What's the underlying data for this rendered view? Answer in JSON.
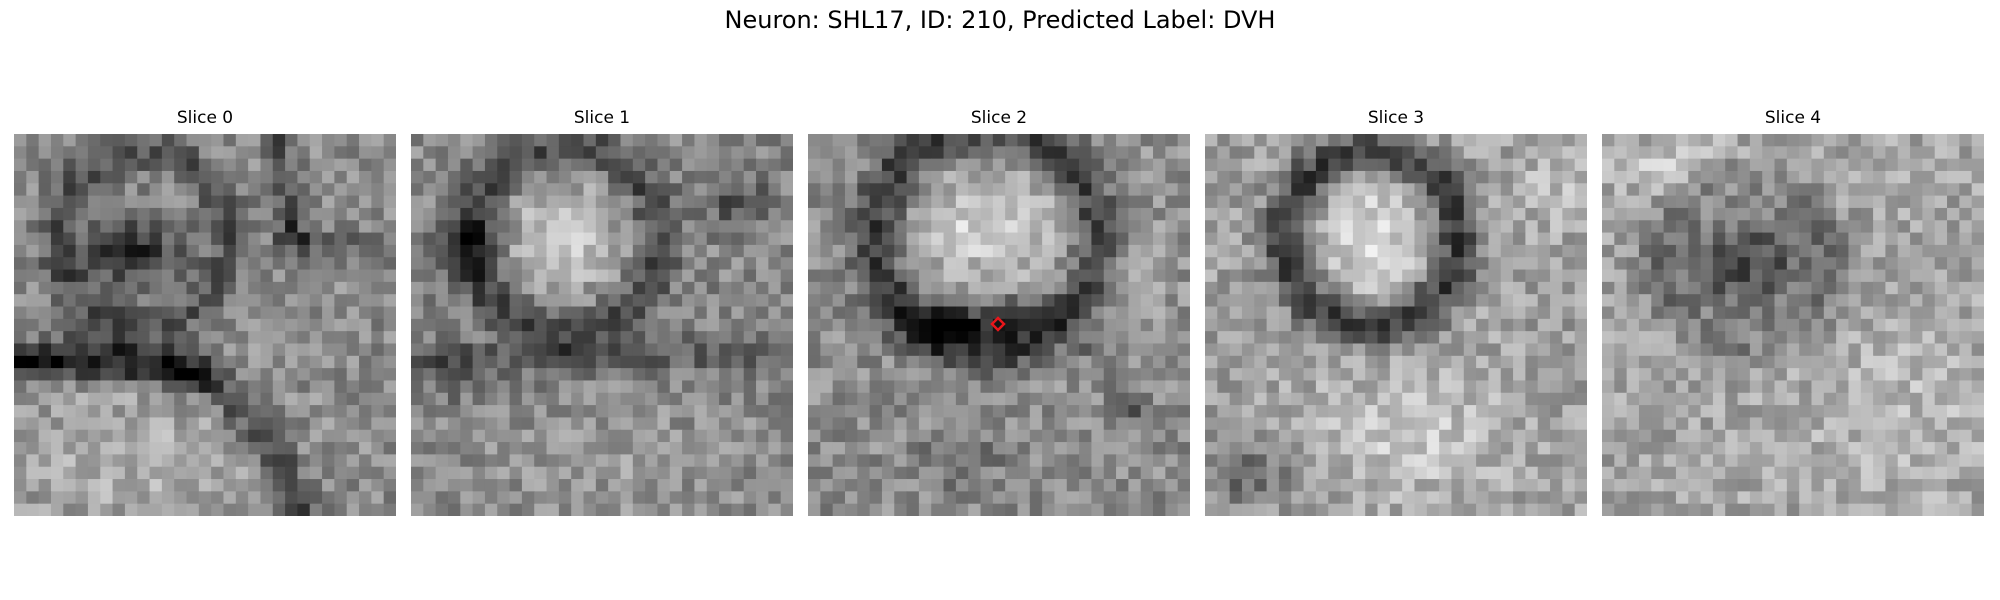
{
  "figure": {
    "title": "Neuron: SHL17, ID: 210, Predicted Label: DVH"
  },
  "panels": [
    {
      "title": "Slice 0"
    },
    {
      "title": "Slice 1"
    },
    {
      "title": "Slice 2"
    },
    {
      "title": "Slice 3"
    },
    {
      "title": "Slice 4"
    }
  ],
  "marker": {
    "panel_index": 2,
    "color": "#e8161b",
    "shape": "diamond"
  }
}
